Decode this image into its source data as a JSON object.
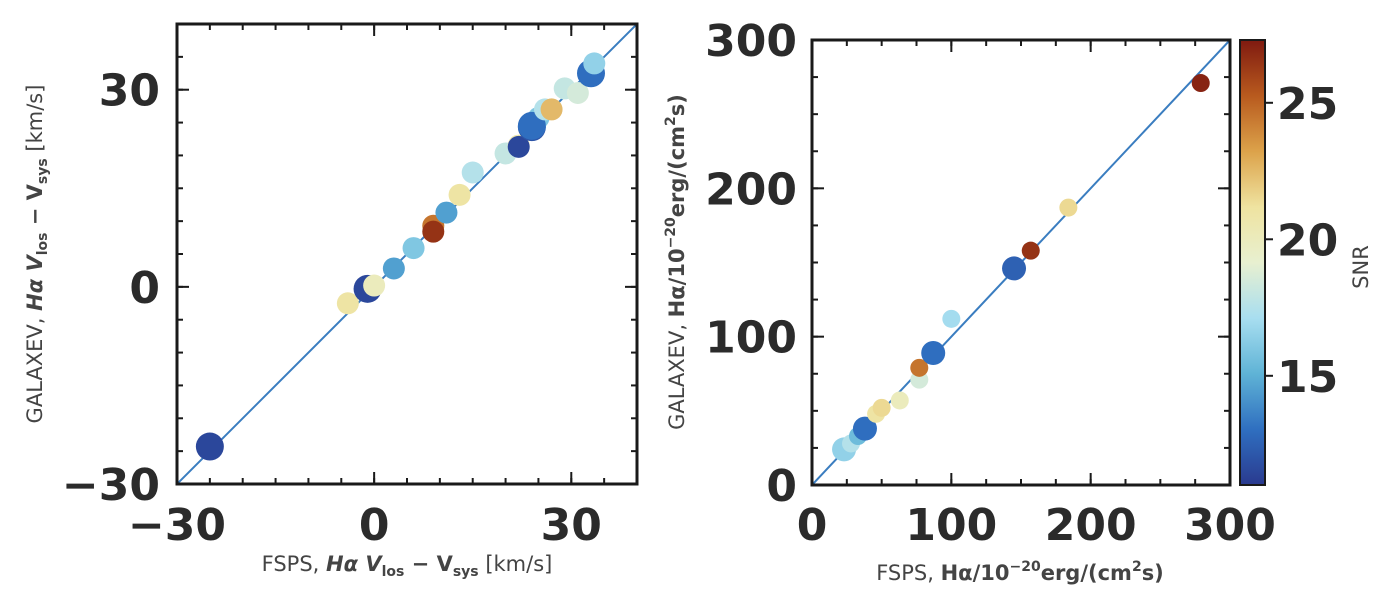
{
  "chart_data": [
    {
      "type": "scatter",
      "title": "",
      "xlabel": {
        "prefix": "FSPS, ",
        "quantity": "Hα V",
        "sub1": "los",
        "minus": " − V",
        "sub2": "sys",
        "units": " [km/s]"
      },
      "ylabel": {
        "prefix": "GALAXEV, ",
        "quantity": "Hα V",
        "sub1": "los",
        "minus": " − V",
        "sub2": "sys",
        "units": " [km/s]"
      },
      "xlim": [
        -30,
        40
      ],
      "ylim": [
        -30,
        40
      ],
      "xticks": [
        {
          "value": -30,
          "label": "−30"
        },
        {
          "value": 0,
          "label": "0"
        },
        {
          "value": 30,
          "label": "30"
        }
      ],
      "yticks": [
        {
          "value": -30,
          "label": "−30"
        },
        {
          "value": 0,
          "label": "0"
        },
        {
          "value": 30,
          "label": "30"
        }
      ],
      "reference_line": "y = x",
      "points": [
        {
          "x": -25,
          "y": -24.3,
          "snr": 11.5,
          "size": "large"
        },
        {
          "x": -4,
          "y": -2.5,
          "snr": 21,
          "size": "small"
        },
        {
          "x": -1,
          "y": -0.3,
          "snr": 11.5,
          "size": "large"
        },
        {
          "x": 0,
          "y": 0.2,
          "snr": 20,
          "size": "small"
        },
        {
          "x": 3,
          "y": 2.8,
          "snr": 14.5,
          "size": "small"
        },
        {
          "x": 6,
          "y": 5.9,
          "snr": 16,
          "size": "small"
        },
        {
          "x": 9,
          "y": 9.3,
          "snr": 24.5,
          "size": "small"
        },
        {
          "x": 9,
          "y": 8.4,
          "snr": 26.5,
          "size": "small"
        },
        {
          "x": 11,
          "y": 11.3,
          "snr": 14.5,
          "size": "small"
        },
        {
          "x": 13,
          "y": 14,
          "snr": 21,
          "size": "small"
        },
        {
          "x": 15,
          "y": 17.4,
          "snr": 17.5,
          "size": "small"
        },
        {
          "x": 20,
          "y": 20.3,
          "snr": 18,
          "size": "small"
        },
        {
          "x": 22,
          "y": 21.5,
          "snr": 20.5,
          "size": "small"
        },
        {
          "x": 22,
          "y": 21.3,
          "snr": 11.5,
          "size": "small"
        },
        {
          "x": 24,
          "y": 24.3,
          "snr": 12,
          "size": "large"
        },
        {
          "x": 25,
          "y": 25.7,
          "snr": 16,
          "size": "small"
        },
        {
          "x": 24,
          "y": 24.5,
          "snr": 13,
          "size": "large"
        },
        {
          "x": 26,
          "y": 27,
          "snr": 17.5,
          "size": "small"
        },
        {
          "x": 27,
          "y": 27,
          "snr": 22.5,
          "size": "small"
        },
        {
          "x": 29,
          "y": 30.2,
          "snr": 18,
          "size": "small"
        },
        {
          "x": 31,
          "y": 29.5,
          "snr": 18.5,
          "size": "small"
        },
        {
          "x": 33,
          "y": 32.5,
          "snr": 13,
          "size": "large"
        },
        {
          "x": 33.5,
          "y": 34,
          "snr": 16.5,
          "size": "small"
        }
      ]
    },
    {
      "type": "scatter",
      "title": "",
      "xlabel": {
        "prefix": "FSPS, ",
        "quantity": "Hα/10",
        "exp": "−20",
        "units": "erg/(cm",
        "units_exp": "2",
        "units_end": "s)"
      },
      "ylabel": {
        "prefix": "GALAXEV, ",
        "quantity": "Hα/10",
        "exp": "−20",
        "units": "erg/(cm",
        "units_exp": "2",
        "units_end": "s)"
      },
      "xlim": [
        0,
        300
      ],
      "ylim": [
        0,
        300
      ],
      "xticks": [
        {
          "value": 0,
          "label": "0"
        },
        {
          "value": 100,
          "label": "100"
        },
        {
          "value": 200,
          "label": "200"
        },
        {
          "value": 300,
          "label": "300"
        }
      ],
      "yticks": [
        {
          "value": 0,
          "label": "0"
        },
        {
          "value": 100,
          "label": "100"
        },
        {
          "value": 200,
          "label": "200"
        },
        {
          "value": 300,
          "label": "300"
        }
      ],
      "reference_line": "y = x",
      "points": [
        {
          "x": 23,
          "y": 24,
          "snr": 16.5,
          "size": "large"
        },
        {
          "x": 28,
          "y": 28,
          "snr": 17.5,
          "size": "small"
        },
        {
          "x": 33,
          "y": 33,
          "snr": 15.5,
          "size": "small"
        },
        {
          "x": 38,
          "y": 38,
          "snr": 13,
          "size": "large"
        },
        {
          "x": 46,
          "y": 48,
          "snr": 21,
          "size": "small"
        },
        {
          "x": 50,
          "y": 52,
          "snr": 21.5,
          "size": "small"
        },
        {
          "x": 63,
          "y": 57,
          "snr": 20,
          "size": "small"
        },
        {
          "x": 77,
          "y": 71,
          "snr": 18.5,
          "size": "small"
        },
        {
          "x": 77,
          "y": 79,
          "snr": 24.5,
          "size": "small"
        },
        {
          "x": 87,
          "y": 89,
          "snr": 13,
          "size": "large"
        },
        {
          "x": 100,
          "y": 112,
          "snr": 17,
          "size": "small"
        },
        {
          "x": 145,
          "y": 146,
          "snr": 12.5,
          "size": "large"
        },
        {
          "x": 157,
          "y": 158,
          "snr": 26.5,
          "size": "small"
        },
        {
          "x": 184,
          "y": 187,
          "snr": 21.5,
          "size": "small"
        },
        {
          "x": 279,
          "y": 271,
          "snr": 27,
          "size": "small"
        }
      ]
    }
  ],
  "colorbar": {
    "label": "SNR",
    "range": [
      11,
      27.3
    ],
    "ticks": [
      {
        "value": 15,
        "label": "15"
      },
      {
        "value": 20,
        "label": "20"
      },
      {
        "value": 25,
        "label": "25"
      }
    ],
    "colormap_stops": [
      "#2a3a8f",
      "#2f6fc0",
      "#5fb3d6",
      "#a8def0",
      "#e8f0d0",
      "#efe3a0",
      "#dca24a",
      "#b85a1e",
      "#7f1a10"
    ]
  }
}
